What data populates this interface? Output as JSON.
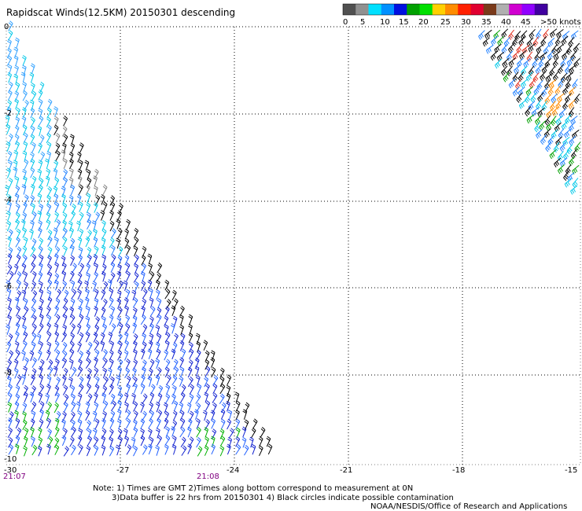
{
  "title": "Rapidscat Winds(12.5KM) 20150301 descending",
  "colorbar": {
    "labels": [
      "0",
      "5",
      "10",
      "15",
      "20",
      "25",
      "30",
      "35",
      "40",
      "45",
      ">50 knots"
    ],
    "colors": [
      "#505050",
      "#909090",
      "#00e0ff",
      "#0090ff",
      "#0010e0",
      "#00a000",
      "#00e000",
      "#ffd000",
      "#ff8c00",
      "#ff2000",
      "#e00030",
      "#7a3a1a",
      "#b0b0b0",
      "#d000d0",
      "#9000ff",
      "#4000a0"
    ]
  },
  "axes": {
    "y_labels": [
      "0",
      "-2",
      "-4",
      "-6",
      "-8",
      "-10"
    ],
    "x_labels": [
      "-30",
      "-27",
      "-24",
      "-21",
      "-18",
      "-15"
    ],
    "x_range": [
      -30,
      -15
    ],
    "y_range": [
      -10,
      0
    ],
    "grid": true
  },
  "times": {
    "left": "21:07",
    "mid": "21:08"
  },
  "notes": {
    "line1": "Note: 1) Times are GMT 2)Times along bottom correspond to measurement at 0N",
    "line2": "3)Data buffer is 22 hrs from 20150301 4) Black circles indicate possible contamination",
    "credit": "NOAA/NESDIS/Office of Research and Applications"
  },
  "swaths": {
    "main": {
      "description_level": "wind barbs mostly 10-20 knots, blue shades"
    },
    "top_right": {
      "description_level": "wind barbs mostly 15-35 knots"
    }
  }
}
